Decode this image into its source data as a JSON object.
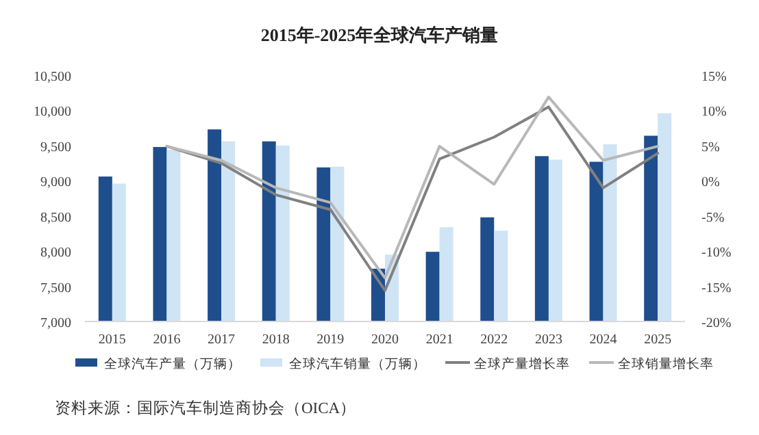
{
  "chart_data": {
    "type": "bar",
    "title": "2015年-2025年全球汽车产销量",
    "categories": [
      "2015",
      "2016",
      "2017",
      "2018",
      "2019",
      "2020",
      "2021",
      "2022",
      "2023",
      "2024",
      "2025"
    ],
    "series": [
      {
        "name": "全球汽车产量（万辆）",
        "color": "#1f4e8c",
        "values": [
          9060,
          9480,
          9730,
          9560,
          9190,
          7750,
          7990,
          8480,
          9350,
          9270,
          9640
        ]
      },
      {
        "name": "全球汽车销量（万辆）",
        "color": "#cfe4f5",
        "values": [
          8960,
          9440,
          9560,
          9500,
          9200,
          7950,
          8340,
          8290,
          9300,
          9520,
          9960
        ]
      },
      {
        "name": "全球产量增长率",
        "type": "line",
        "axis": "y2",
        "color": "#808080",
        "values": [
          null,
          4.9,
          2.5,
          -2,
          -4.1,
          -15.6,
          3.1,
          6.2,
          10.5,
          -1,
          3.9
        ]
      },
      {
        "name": "全球销量增长率",
        "type": "line",
        "axis": "y2",
        "color": "#b8b8b8",
        "values": [
          null,
          4.9,
          2.9,
          -1,
          -3.1,
          -13.8,
          4.9,
          -0.5,
          11.9,
          2.9,
          4.9
        ]
      }
    ],
    "ylim": [
      7000,
      10500
    ],
    "yticks": [
      {
        "value": 7000,
        "label": "7,000"
      },
      {
        "value": 7500,
        "label": "7,500"
      },
      {
        "value": 8000,
        "label": "8,000"
      },
      {
        "value": 8500,
        "label": "8,500"
      },
      {
        "value": 9000,
        "label": "9,000"
      },
      {
        "value": 9500,
        "label": "9,500"
      },
      {
        "value": 10000,
        "label": "10,000"
      },
      {
        "value": 10500,
        "label": "10,500"
      }
    ],
    "y2lim": [
      -20,
      15
    ],
    "y2ticks": [
      {
        "value": -20,
        "label": "-20%"
      },
      {
        "value": -15,
        "label": "-15%"
      },
      {
        "value": -10,
        "label": "-10%"
      },
      {
        "value": -5,
        "label": "-5%"
      },
      {
        "value": 0,
        "label": "0%"
      },
      {
        "value": 5,
        "label": "5%"
      },
      {
        "value": 10,
        "label": "10%"
      },
      {
        "value": 15,
        "label": "15%"
      }
    ],
    "legend": "bottom",
    "annotations": [
      "资料来源：国际汽车制造商协会（OICA）"
    ]
  }
}
